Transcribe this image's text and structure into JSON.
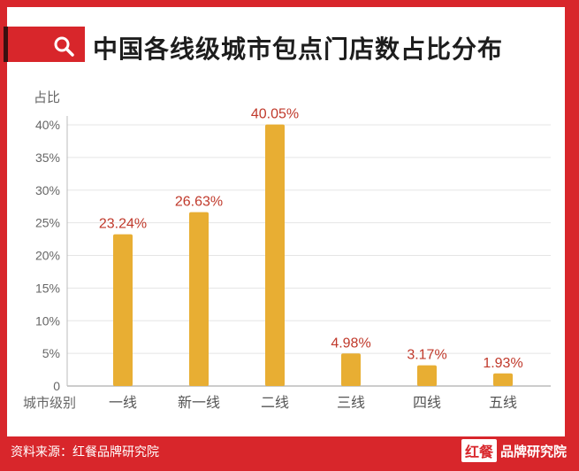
{
  "title": "中国各线级城市包点门店数占比分布",
  "footer": {
    "source": "资料来源：红餐品牌研究院",
    "logo_mark": "红餐",
    "logo_text": "品牌研究院"
  },
  "colors": {
    "frame": "#d8262b",
    "bar": "#e8ae33",
    "value_label": "#c0392b",
    "axis_text": "#666666",
    "grid": "#e5e5e5"
  },
  "icons": [
    "search-icon"
  ],
  "chart_data": {
    "type": "bar",
    "ylabel": "占比",
    "xlabel": "城市级别",
    "categories": [
      "一线",
      "新一线",
      "二线",
      "三线",
      "四线",
      "五线"
    ],
    "values": [
      23.24,
      26.63,
      40.05,
      4.98,
      3.17,
      1.93
    ],
    "value_labels": [
      "23.24%",
      "26.63%",
      "40.05%",
      "4.98%",
      "3.17%",
      "1.93%"
    ],
    "ylim": [
      0,
      40
    ],
    "yticks": [
      0,
      5,
      10,
      15,
      20,
      25,
      30,
      35,
      40
    ],
    "ytick_labels": [
      "0",
      "5%",
      "10%",
      "15%",
      "20%",
      "25%",
      "30%",
      "35%",
      "40%"
    ],
    "grid": true
  }
}
